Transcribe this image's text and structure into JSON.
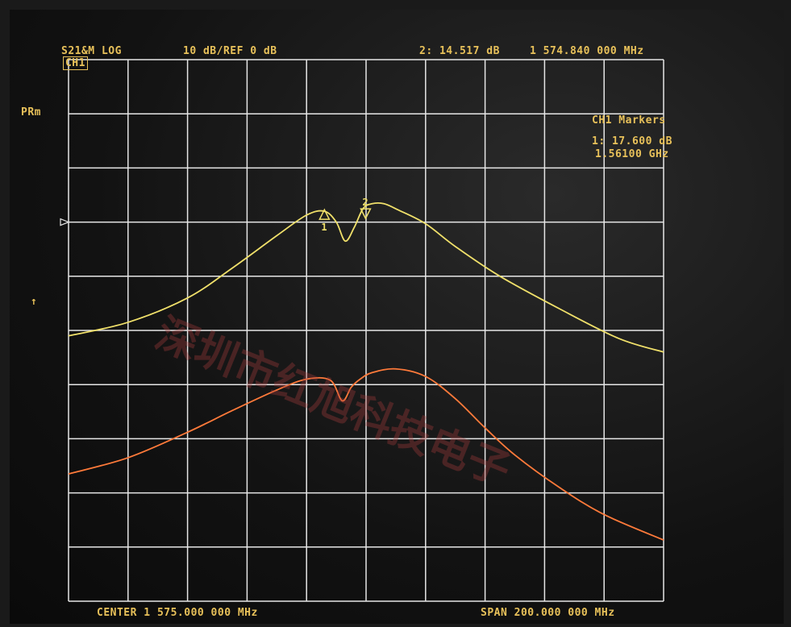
{
  "header": {
    "channel": "CH1",
    "trace_format": "S21&M LOG",
    "scale": "10 dB/REF 0 dB",
    "active_marker": "2: 14.517 dB",
    "active_freq": "1 574.840 000 MHz"
  },
  "side": {
    "mode": "PRm",
    "ref_arrow": "↑"
  },
  "marker_panel": {
    "title": "CH1 Markers",
    "m1_value": "1: 17.600 dB",
    "m1_freq": "1.56100 GHz"
  },
  "markers": [
    {
      "label": "1",
      "freq_mhz": 1561.0
    },
    {
      "label": "2",
      "freq_mhz": 1574.84
    }
  ],
  "footer": {
    "center": "CENTER 1 575.000 000 MHz",
    "span": "SPAN 200.000 000 MHz"
  },
  "watermark": "深圳市红旭科技电子",
  "colors": {
    "grid": "#e6e6e6",
    "trace_yellow": "#f0e06a",
    "trace_orange": "#ff7a3a",
    "annotation": "#e8c15a"
  },
  "chart_data": {
    "type": "line",
    "x_unit": "MHz",
    "xlim": [
      1475,
      1675
    ],
    "ylim": [
      -70,
      30
    ],
    "grid": true,
    "series": [
      {
        "color": "#f0e06a",
        "x": [
          1475,
          1495,
          1515,
          1530,
          1545,
          1555,
          1561,
          1565,
          1568,
          1571,
          1574,
          1577,
          1581,
          1586,
          1595,
          1605,
          1620,
          1640,
          1660,
          1675
        ],
        "y": [
          -21,
          -18.5,
          -14,
          -8.5,
          -2.5,
          1.3,
          2,
          0,
          -3.5,
          -1,
          2.5,
          3.4,
          3.4,
          2.2,
          -0.3,
          -4.5,
          -10,
          -16,
          -21.5,
          -24
        ]
      },
      {
        "color": "#ff7a3a",
        "x": [
          1475,
          1495,
          1515,
          1530,
          1545,
          1555,
          1563,
          1567,
          1570,
          1573,
          1577,
          1585,
          1595,
          1605,
          1615,
          1625,
          1640,
          1655,
          1675
        ],
        "y": [
          -46.5,
          -43.5,
          -38.8,
          -34.8,
          -31,
          -29,
          -29.2,
          -33,
          -30.5,
          -29,
          -27.8,
          -27.1,
          -28.5,
          -32.6,
          -38,
          -43,
          -49,
          -54,
          -58.7
        ]
      }
    ]
  }
}
